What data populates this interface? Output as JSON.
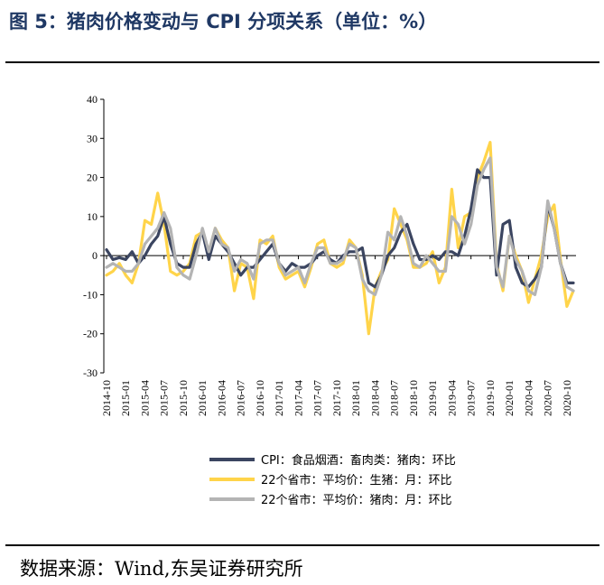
{
  "figure": {
    "title": "图 5：猪肉价格变动与 CPI 分项关系（单位：%）",
    "source": "数据来源：Wind,东吴证券研究所"
  },
  "chart_data": {
    "type": "line",
    "x": [
      "2014-10",
      "2014-11",
      "2014-12",
      "2015-01",
      "2015-02",
      "2015-03",
      "2015-04",
      "2015-05",
      "2015-06",
      "2015-07",
      "2015-08",
      "2015-09",
      "2015-10",
      "2015-11",
      "2015-12",
      "2016-01",
      "2016-02",
      "2016-03",
      "2016-04",
      "2016-05",
      "2016-06",
      "2016-07",
      "2016-08",
      "2016-09",
      "2016-10",
      "2016-11",
      "2016-12",
      "2017-01",
      "2017-02",
      "2017-03",
      "2017-04",
      "2017-05",
      "2017-06",
      "2017-07",
      "2017-08",
      "2017-09",
      "2017-10",
      "2017-11",
      "2017-12",
      "2018-01",
      "2018-02",
      "2018-03",
      "2018-04",
      "2018-05",
      "2018-06",
      "2018-07",
      "2018-08",
      "2018-09",
      "2018-10",
      "2018-11",
      "2018-12",
      "2019-01",
      "2019-02",
      "2019-03",
      "2019-04",
      "2019-05",
      "2019-06",
      "2019-07",
      "2019-08",
      "2019-09",
      "2019-10",
      "2019-11",
      "2019-12",
      "2020-01",
      "2020-02",
      "2020-03",
      "2020-04",
      "2020-05",
      "2020-06",
      "2020-07",
      "2020-08",
      "2020-09",
      "2020-10",
      "2020-11"
    ],
    "xtick_labels": [
      "2014-10",
      "2015-01",
      "2015-04",
      "2015-07",
      "2015-10",
      "2016-01",
      "2016-04",
      "2016-07",
      "2016-10",
      "2017-01",
      "2017-04",
      "2017-07",
      "2017-10",
      "2018-01",
      "2018-04",
      "2018-07",
      "2018-10",
      "2019-01",
      "2019-04",
      "2019-07",
      "2019-10",
      "2020-01",
      "2020-04",
      "2020-07",
      "2020-10"
    ],
    "ylim": [
      -30,
      40
    ],
    "yticks": [
      -30,
      -20,
      -10,
      0,
      10,
      20,
      30,
      40
    ],
    "grid": false,
    "legend_position": "bottom",
    "series": [
      {
        "name": "CPI：食品烟酒：畜肉类：猪肉：环比",
        "color": "#3b4560",
        "values": [
          1.5,
          -1,
          -0.5,
          -1,
          1,
          -2,
          0,
          3,
          5,
          10,
          3,
          -2,
          -3,
          -3,
          3,
          6,
          -1,
          5,
          3,
          1,
          -2,
          -5,
          -3,
          -3,
          -1,
          1,
          3,
          -2,
          -4,
          -2,
          -3,
          -3,
          -2,
          0,
          1,
          -1,
          -2,
          0,
          1,
          1,
          2,
          -7,
          -8,
          -5,
          0,
          2,
          6,
          8,
          3,
          -1,
          -1,
          0,
          -1,
          1,
          1,
          0,
          5,
          12,
          22,
          20,
          20,
          -5,
          8,
          9,
          -3,
          -7,
          -8,
          -6,
          -3,
          13,
          7,
          -2,
          -7,
          -7
        ]
      },
      {
        "name": "22个省市：平均价：生猪：月：环比",
        "color": "#ffd44a",
        "values": [
          -5,
          -4,
          -2,
          -5,
          -7,
          -2,
          9,
          8,
          16,
          8,
          -4,
          -5,
          -4,
          -2,
          5,
          6,
          1,
          7,
          4,
          2,
          -9,
          -2,
          -3,
          -11,
          4,
          3,
          5,
          -3,
          -6,
          -5,
          -4,
          -8,
          -3,
          3,
          4,
          -2,
          -3,
          -2,
          4,
          2,
          -5,
          -20,
          -8,
          -4,
          -1,
          12,
          8,
          4,
          -3,
          -3,
          -2,
          1,
          -7,
          -3,
          17,
          2,
          10,
          11,
          20,
          24,
          29,
          -2,
          -9,
          5,
          0,
          -4,
          -12,
          -6,
          0,
          10,
          13,
          -1,
          -13,
          -9
        ]
      },
      {
        "name": "22个省市：平均价：猪肉：月：环比",
        "color": "#b4b4b4",
        "values": [
          -3,
          -2,
          -3,
          -4,
          -4,
          -2,
          3,
          5,
          7,
          11,
          7,
          -3,
          -5,
          -6,
          0,
          7,
          1,
          7,
          3,
          2,
          -4,
          -1,
          -2,
          -6,
          3,
          4,
          4,
          -2,
          -5,
          -4,
          -3,
          -7,
          -2,
          2,
          2,
          -2,
          -2,
          -1,
          3,
          2,
          -6,
          -9,
          -10,
          -5,
          6,
          4,
          10,
          5,
          -2,
          -3,
          0,
          -2,
          -4,
          -4,
          10,
          8,
          3,
          8,
          18,
          22,
          25,
          -3,
          -8,
          5,
          -1,
          -4,
          -9,
          -10,
          -3,
          14,
          7,
          -2,
          -8,
          -9
        ]
      }
    ]
  }
}
